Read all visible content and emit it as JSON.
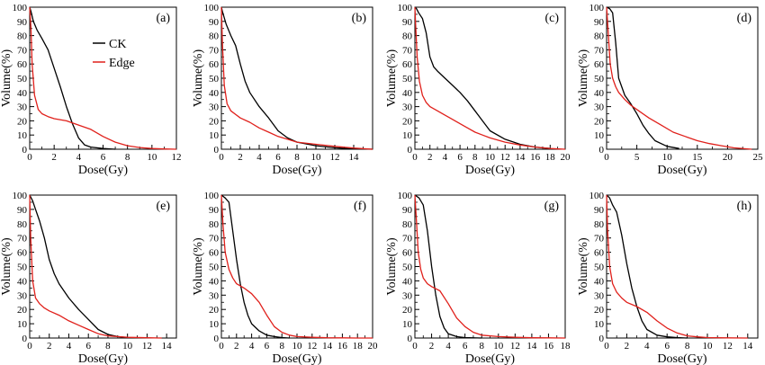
{
  "legend": {
    "entries": [
      {
        "name": "CK",
        "color": "#000000"
      },
      {
        "name": "Edge",
        "color": "#e0201b"
      }
    ],
    "panel": 0
  },
  "chart_data": [
    {
      "type": "line",
      "tag": "(a)",
      "xlabel": "Dose(Gy)",
      "ylabel": "Volume(%)",
      "xlim": [
        0,
        12
      ],
      "xticks": [
        0,
        2,
        4,
        6,
        8,
        10,
        12
      ],
      "ylim": [
        0,
        100
      ],
      "yticks": [
        0,
        10,
        20,
        30,
        40,
        50,
        60,
        70,
        80,
        90,
        100
      ],
      "series": [
        {
          "name": "CK",
          "color": "#000000",
          "x": [
            0,
            0.1,
            0.3,
            0.6,
            1,
            1.5,
            2,
            2.5,
            3,
            3.5,
            4,
            4.5,
            5,
            6,
            7
          ],
          "y": [
            100,
            97,
            90,
            84,
            78,
            70,
            57,
            44,
            30,
            18,
            8,
            3,
            1.5,
            0.5,
            0
          ]
        },
        {
          "name": "Edge",
          "color": "#e0201b",
          "x": [
            0,
            0.1,
            0.2,
            0.4,
            0.7,
            1,
            1.5,
            2,
            3,
            4,
            5,
            6,
            7,
            8,
            9,
            10,
            11,
            12
          ],
          "y": [
            100,
            85,
            60,
            38,
            28,
            25,
            23,
            21.5,
            20,
            17,
            14,
            9,
            5,
            2.5,
            1.2,
            0.5,
            0.2,
            0
          ]
        }
      ]
    },
    {
      "type": "line",
      "tag": "(b)",
      "xlabel": "Dose(Gy)",
      "ylabel": "Volume(%)",
      "xlim": [
        0,
        16
      ],
      "xticks": [
        0,
        2,
        4,
        6,
        8,
        10,
        12,
        14
      ],
      "ylim": [
        0,
        100
      ],
      "yticks": [
        0,
        10,
        20,
        30,
        40,
        50,
        60,
        70,
        80,
        90,
        100
      ],
      "series": [
        {
          "name": "CK",
          "color": "#000000",
          "x": [
            0,
            0.1,
            0.5,
            1,
            1.5,
            2,
            2.5,
            3,
            4,
            5,
            6,
            7,
            8,
            10,
            12,
            14,
            16
          ],
          "y": [
            100,
            97,
            88,
            80,
            73,
            60,
            48,
            40,
            30,
            22,
            13,
            8,
            5,
            2.5,
            1,
            0.3,
            0
          ]
        },
        {
          "name": "Edge",
          "color": "#e0201b",
          "x": [
            0,
            0.1,
            0.3,
            0.6,
            1,
            2,
            3,
            4,
            5,
            6,
            7,
            8,
            10,
            12,
            14,
            16
          ],
          "y": [
            100,
            75,
            45,
            32,
            27,
            22,
            19,
            15,
            12,
            9,
            7,
            5,
            3.5,
            2,
            0.8,
            0
          ]
        }
      ]
    },
    {
      "type": "line",
      "tag": "(c)",
      "xlabel": "Dose(Gy)",
      "ylabel": "Volume(%)",
      "xlim": [
        0,
        20
      ],
      "xticks": [
        0,
        2,
        4,
        6,
        8,
        10,
        12,
        14,
        16,
        18,
        20
      ],
      "ylim": [
        0,
        100
      ],
      "yticks": [
        0,
        10,
        20,
        30,
        40,
        50,
        60,
        70,
        80,
        90,
        100
      ],
      "series": [
        {
          "name": "CK",
          "color": "#000000",
          "x": [
            0,
            0.2,
            0.5,
            1,
            1.5,
            2,
            2.5,
            3,
            4,
            5,
            6,
            7,
            8,
            9,
            10,
            12,
            14,
            16,
            18
          ],
          "y": [
            100,
            99,
            96,
            92,
            82,
            65,
            58,
            55,
            50,
            45,
            40,
            34,
            27,
            20,
            13,
            7,
            3.5,
            1.5,
            0.5
          ]
        },
        {
          "name": "Edge",
          "color": "#e0201b",
          "x": [
            0,
            0.1,
            0.3,
            0.6,
            1,
            1.5,
            2,
            3,
            4,
            5,
            6,
            7,
            8,
            9,
            10,
            12,
            14,
            16,
            18,
            20
          ],
          "y": [
            100,
            88,
            65,
            48,
            38,
            33,
            30,
            27,
            24,
            21,
            18,
            15,
            12,
            10,
            8,
            5,
            3,
            1.5,
            0.5,
            0
          ]
        }
      ]
    },
    {
      "type": "line",
      "tag": "(d)",
      "xlabel": "Dose(Gy)",
      "ylabel": "Volume(%)",
      "xlim": [
        0,
        25
      ],
      "xticks": [
        0,
        5,
        10,
        15,
        20,
        25
      ],
      "ylim": [
        0,
        100
      ],
      "yticks": [
        0,
        10,
        20,
        30,
        40,
        50,
        60,
        70,
        80,
        90,
        100
      ],
      "series": [
        {
          "name": "CK",
          "color": "#000000",
          "x": [
            0,
            0.5,
            1,
            1.5,
            2,
            3,
            4,
            5,
            6,
            7,
            8,
            10,
            12
          ],
          "y": [
            100,
            99,
            96,
            75,
            50,
            38,
            32,
            25,
            17,
            11,
            6,
            2,
            0.5
          ]
        },
        {
          "name": "Edge",
          "color": "#e0201b",
          "x": [
            0,
            0.3,
            0.6,
            1,
            1.5,
            2,
            3,
            4,
            5,
            7,
            9,
            11,
            13,
            15,
            17,
            19,
            21,
            23,
            24
          ],
          "y": [
            100,
            80,
            60,
            50,
            44,
            40,
            35,
            31,
            28,
            22,
            17,
            12,
            9,
            6,
            4,
            2.5,
            1,
            0.3,
            0
          ]
        }
      ]
    },
    {
      "type": "line",
      "tag": "(e)",
      "xlabel": "Dose(Gy)",
      "ylabel": "Volume(%)",
      "xlim": [
        0,
        15
      ],
      "xticks": [
        0,
        2,
        4,
        6,
        8,
        10,
        12,
        14
      ],
      "ylim": [
        0,
        100
      ],
      "yticks": [
        0,
        10,
        20,
        30,
        40,
        50,
        60,
        70,
        80,
        90,
        100
      ],
      "series": [
        {
          "name": "CK",
          "color": "#000000",
          "x": [
            0,
            0.3,
            0.6,
            1,
            1.5,
            2,
            2.5,
            3,
            4,
            5,
            6,
            7,
            8,
            9,
            10
          ],
          "y": [
            100,
            96,
            90,
            82,
            70,
            55,
            45,
            38,
            28,
            20,
            13,
            6,
            2.5,
            1,
            0.3
          ]
        },
        {
          "name": "Edge",
          "color": "#e0201b",
          "x": [
            0,
            0.1,
            0.3,
            0.6,
            1,
            1.5,
            2,
            3,
            4,
            5,
            6,
            7,
            8,
            10,
            12,
            13.5
          ],
          "y": [
            100,
            70,
            40,
            28,
            24,
            21,
            19,
            16,
            12,
            9,
            6,
            3,
            1.5,
            0.5,
            0.2,
            0
          ]
        }
      ]
    },
    {
      "type": "line",
      "tag": "(f)",
      "xlabel": "Dose(Gy)",
      "ylabel": "Volume(%)",
      "xlim": [
        0,
        20
      ],
      "xticks": [
        0,
        2,
        4,
        6,
        8,
        10,
        12,
        14,
        16,
        18,
        20
      ],
      "ylim": [
        0,
        100
      ],
      "yticks": [
        0,
        10,
        20,
        30,
        40,
        50,
        60,
        70,
        80,
        90,
        100
      ],
      "series": [
        {
          "name": "CK",
          "color": "#000000",
          "x": [
            0,
            0.5,
            1,
            1.5,
            2,
            2.5,
            3,
            3.5,
            4,
            5,
            6,
            7,
            8,
            9
          ],
          "y": [
            100,
            98,
            95,
            75,
            55,
            38,
            25,
            16,
            10,
            5,
            2,
            1,
            0.3,
            0
          ]
        },
        {
          "name": "Edge",
          "color": "#e0201b",
          "x": [
            0,
            0.2,
            0.5,
            1,
            1.5,
            2,
            3,
            4,
            5,
            6,
            7,
            8,
            9,
            10,
            12,
            14,
            16,
            18,
            20
          ],
          "y": [
            100,
            80,
            60,
            48,
            42,
            38,
            35,
            31,
            25,
            16,
            8,
            4,
            2,
            1,
            0.5,
            0.2,
            0.1,
            0,
            0
          ]
        }
      ]
    },
    {
      "type": "line",
      "tag": "(g)",
      "xlabel": "Dose(Gy)",
      "ylabel": "Volume(%)",
      "xlim": [
        0,
        18
      ],
      "xticks": [
        0,
        2,
        4,
        6,
        8,
        10,
        12,
        14,
        16,
        18
      ],
      "ylim": [
        0,
        100
      ],
      "yticks": [
        0,
        10,
        20,
        30,
        40,
        50,
        60,
        70,
        80,
        90,
        100
      ],
      "series": [
        {
          "name": "CK",
          "color": "#000000",
          "x": [
            0,
            0.5,
            1,
            1.5,
            2,
            2.5,
            3,
            3.5,
            4,
            5,
            6,
            8
          ],
          "y": [
            100,
            98,
            93,
            75,
            50,
            30,
            15,
            7,
            3,
            1,
            0.3,
            0
          ]
        },
        {
          "name": "Edge",
          "color": "#e0201b",
          "x": [
            0,
            0.2,
            0.4,
            0.7,
            1,
            1.5,
            2,
            3,
            4,
            5,
            6,
            7,
            8,
            10,
            12,
            14,
            16,
            18
          ],
          "y": [
            100,
            80,
            60,
            48,
            42,
            38,
            36,
            33,
            24,
            14,
            8,
            4,
            2,
            1,
            0.5,
            0.2,
            0.1,
            0
          ]
        }
      ]
    },
    {
      "type": "line",
      "tag": "(h)",
      "xlabel": "Dose(Gy)",
      "ylabel": "Volume(%)",
      "xlim": [
        0,
        15
      ],
      "xticks": [
        0,
        2,
        4,
        6,
        8,
        10,
        12,
        14
      ],
      "ylim": [
        0,
        100
      ],
      "yticks": [
        0,
        10,
        20,
        30,
        40,
        50,
        60,
        70,
        80,
        90,
        100
      ],
      "series": [
        {
          "name": "CK",
          "color": "#000000",
          "x": [
            0,
            0.3,
            0.6,
            1,
            1.5,
            2,
            2.5,
            3,
            3.5,
            4,
            5,
            6,
            7,
            8
          ],
          "y": [
            100,
            98,
            93,
            88,
            72,
            52,
            35,
            22,
            12,
            6,
            2,
            0.8,
            0.3,
            0
          ]
        },
        {
          "name": "Edge",
          "color": "#e0201b",
          "x": [
            0,
            0.1,
            0.3,
            0.6,
            1,
            1.5,
            2,
            3,
            4,
            5,
            6,
            7,
            8,
            9,
            10,
            12,
            14
          ],
          "y": [
            100,
            75,
            50,
            38,
            32,
            28,
            25,
            22,
            18,
            12,
            7,
            3.5,
            1.5,
            0.8,
            0.3,
            0.1,
            0
          ]
        }
      ]
    }
  ]
}
